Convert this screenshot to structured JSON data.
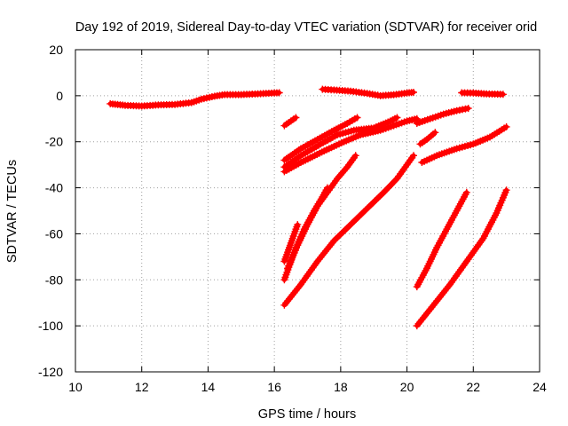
{
  "chart_data": {
    "type": "scatter",
    "title": "Day 192 of 2019, Sidereal Day-to-day VTEC variation (SDTVAR) for receiver orid",
    "xlabel": "GPS time / hours",
    "ylabel": "SDTVAR / TECUs",
    "xlim": [
      10,
      24
    ],
    "ylim": [
      -120,
      20
    ],
    "xticks": [
      10,
      12,
      14,
      16,
      18,
      20,
      22,
      24
    ],
    "yticks": [
      20,
      0,
      -20,
      -40,
      -60,
      -80,
      -100,
      -120
    ],
    "grid": true,
    "marker": "plus",
    "color": "#ff0000",
    "series": [
      {
        "points": [
          [
            11.05,
            -3.5
          ],
          [
            11.5,
            -4.2
          ],
          [
            12.0,
            -4.5
          ],
          [
            12.5,
            -4.0
          ],
          [
            13.0,
            -3.8
          ],
          [
            13.5,
            -3.0
          ],
          [
            13.8,
            -1.5
          ],
          [
            14.2,
            -0.2
          ],
          [
            14.5,
            0.5
          ],
          [
            15.0,
            0.5
          ],
          [
            15.5,
            0.8
          ],
          [
            16.0,
            1.2
          ],
          [
            16.15,
            1.3
          ]
        ]
      },
      {
        "points": [
          [
            17.45,
            2.8
          ],
          [
            17.8,
            2.5
          ],
          [
            18.3,
            2.0
          ],
          [
            18.8,
            1.0
          ],
          [
            19.2,
            0.0
          ],
          [
            19.6,
            0.4
          ],
          [
            20.0,
            1.2
          ],
          [
            20.2,
            1.5
          ]
        ]
      },
      {
        "points": [
          [
            21.65,
            1.3
          ],
          [
            22.0,
            1.2
          ],
          [
            22.4,
            0.8
          ],
          [
            22.9,
            0.6
          ]
        ]
      },
      {
        "points": [
          [
            16.3,
            -13
          ],
          [
            16.5,
            -11
          ],
          [
            16.65,
            -9.5
          ]
        ]
      },
      {
        "points": [
          [
            16.3,
            -28
          ],
          [
            16.8,
            -23
          ],
          [
            17.3,
            -19
          ],
          [
            17.8,
            -15
          ],
          [
            18.2,
            -12
          ],
          [
            18.5,
            -9.5
          ]
        ]
      },
      {
        "points": [
          [
            16.3,
            -31
          ],
          [
            16.8,
            -26
          ],
          [
            17.4,
            -21
          ],
          [
            17.9,
            -17
          ],
          [
            18.4,
            -15
          ],
          [
            19.0,
            -14
          ],
          [
            19.5,
            -11
          ],
          [
            19.7,
            -9.5
          ]
        ]
      },
      {
        "points": [
          [
            16.3,
            -33
          ],
          [
            16.8,
            -29
          ],
          [
            17.5,
            -24
          ],
          [
            18.1,
            -20
          ],
          [
            18.6,
            -17
          ],
          [
            19.2,
            -15
          ],
          [
            19.6,
            -13
          ],
          [
            20.0,
            -11
          ],
          [
            20.3,
            -10
          ]
        ]
      },
      {
        "points": [
          [
            20.3,
            -12
          ],
          [
            20.7,
            -10
          ],
          [
            21.1,
            -8
          ],
          [
            21.5,
            -6.5
          ],
          [
            21.85,
            -5.5
          ]
        ]
      },
      {
        "points": [
          [
            20.4,
            -21
          ],
          [
            20.6,
            -19
          ],
          [
            20.85,
            -16
          ]
        ]
      },
      {
        "points": [
          [
            20.45,
            -29
          ],
          [
            20.9,
            -26
          ],
          [
            21.5,
            -23
          ],
          [
            22.0,
            -21
          ],
          [
            22.5,
            -18
          ],
          [
            23.0,
            -13.5
          ]
        ]
      },
      {
        "points": [
          [
            16.3,
            -72
          ],
          [
            16.4,
            -68
          ],
          [
            16.55,
            -62
          ],
          [
            16.7,
            -56
          ]
        ]
      },
      {
        "points": [
          [
            16.3,
            -80
          ],
          [
            16.6,
            -68
          ],
          [
            16.9,
            -58
          ],
          [
            17.2,
            -50
          ],
          [
            17.45,
            -44
          ],
          [
            17.6,
            -40
          ]
        ]
      },
      {
        "points": [
          [
            16.4,
            -75
          ],
          [
            16.7,
            -65
          ],
          [
            17.0,
            -56
          ],
          [
            17.3,
            -48
          ],
          [
            17.6,
            -42
          ],
          [
            17.9,
            -36
          ],
          [
            18.2,
            -31
          ],
          [
            18.45,
            -26
          ]
        ]
      },
      {
        "points": [
          [
            16.3,
            -91
          ],
          [
            16.8,
            -82
          ],
          [
            17.3,
            -72
          ],
          [
            17.8,
            -63
          ],
          [
            18.3,
            -56
          ],
          [
            18.8,
            -49
          ],
          [
            19.3,
            -42
          ],
          [
            19.7,
            -36
          ],
          [
            20.0,
            -30
          ],
          [
            20.2,
            -26
          ]
        ]
      },
      {
        "points": [
          [
            20.3,
            -83
          ],
          [
            20.6,
            -75
          ],
          [
            20.9,
            -66
          ],
          [
            21.2,
            -58
          ],
          [
            21.5,
            -50
          ],
          [
            21.8,
            -42
          ]
        ]
      },
      {
        "points": [
          [
            20.3,
            -100
          ],
          [
            20.8,
            -91
          ],
          [
            21.3,
            -82
          ],
          [
            21.8,
            -72
          ],
          [
            22.3,
            -62
          ],
          [
            22.7,
            -51
          ],
          [
            23.0,
            -41
          ]
        ]
      }
    ]
  }
}
